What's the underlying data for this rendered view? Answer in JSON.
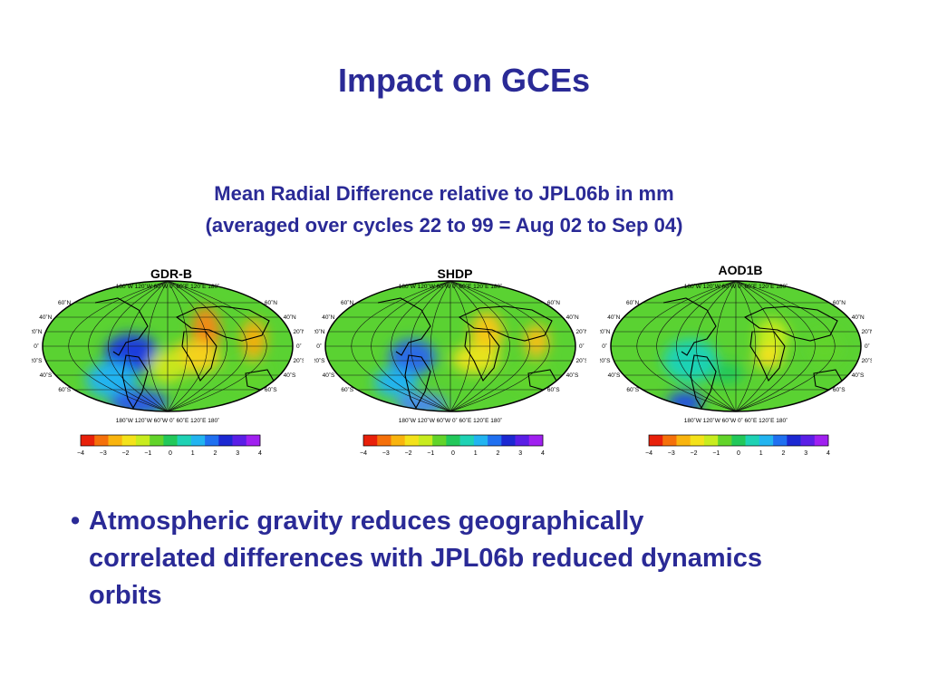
{
  "slide": {
    "title": "Impact on GCEs",
    "subtitle_line1": "Mean Radial Difference relative to JPL06b in mm",
    "subtitle_line2": "(averaged over cycles 22 to 99 = Aug 02 to Sep 04)",
    "bullet_marker": "•",
    "bullet_text": "Atmospheric gravity reduces geographically correlated differences with JPL06b reduced dynamics orbits"
  },
  "panels": [
    {
      "label": "GDR-B"
    },
    {
      "label": "SHDP"
    },
    {
      "label": "AOD1B"
    }
  ],
  "map_labels": {
    "top_lon": "180˚W  120˚W  60˚W  0˚  60˚E  120˚E  180˚",
    "bottom_lon": "180˚W  120˚W  60˚W  0˚  60˚E  120˚E  180˚",
    "lat_left": [
      "60˚N",
      "40˚N",
      "20˚N",
      "0˚",
      "20˚S",
      "40˚S",
      "60˚S"
    ],
    "lat_right": [
      "60˚N",
      "40˚N",
      "20˚N",
      "0˚",
      "20˚S",
      "40˚S",
      "60˚S"
    ]
  },
  "colorbar": {
    "ticks": [
      "−4",
      "−3",
      "−2",
      "−1",
      "0",
      "1",
      "2",
      "3",
      "4"
    ],
    "colors": [
      "#e8200a",
      "#f5700a",
      "#f9b40e",
      "#f4e21a",
      "#c8ec1e",
      "#62d42a",
      "#22c85a",
      "#1ed2b4",
      "#22b4f0",
      "#2070f0",
      "#1c28d2",
      "#5a1ee6",
      "#a020f0"
    ]
  }
}
